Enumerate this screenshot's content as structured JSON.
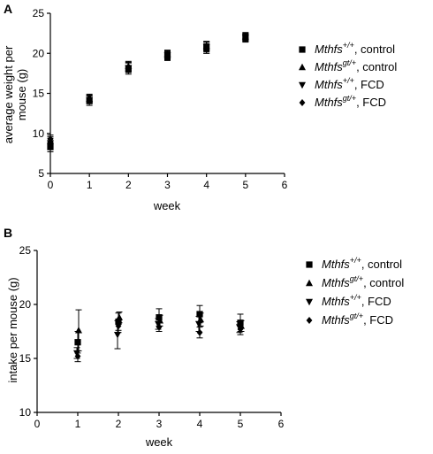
{
  "chart_data": [
    {
      "panel": "A",
      "type": "scatter",
      "xlabel": "week",
      "ylabel": "average weight per mouse (g)",
      "xlim": [
        0,
        6
      ],
      "ylim": [
        5,
        25
      ],
      "xticks": [
        0,
        1,
        2,
        3,
        4,
        5,
        6
      ],
      "yticks": [
        5,
        10,
        15,
        20,
        25
      ],
      "grid": false,
      "legend_position": "right",
      "series": [
        {
          "name": "Mthfs+/+, control",
          "marker": "square",
          "x": [
            0,
            1,
            2,
            3,
            4,
            5
          ],
          "y": [
            8.3,
            14.1,
            18.1,
            19.7,
            20.7,
            22.0
          ],
          "err": [
            0.6,
            0.6,
            0.7,
            0.5,
            0.7,
            0.5
          ]
        },
        {
          "name": "Mthfsgt/+, control",
          "marker": "triangle-up",
          "x": [
            0,
            1,
            2,
            3,
            4,
            5
          ],
          "y": [
            9.0,
            14.3,
            18.4,
            19.9,
            20.9,
            22.1
          ],
          "err": [
            0.6,
            0.5,
            0.6,
            0.5,
            0.6,
            0.5
          ]
        },
        {
          "name": "Mthfs+/+, FCD",
          "marker": "triangle-down",
          "x": [
            0,
            1,
            2,
            3,
            4,
            5
          ],
          "y": [
            8.8,
            14.2,
            18.2,
            19.8,
            20.8,
            22.0
          ],
          "err": [
            0.6,
            0.5,
            0.6,
            0.5,
            0.6,
            0.5
          ]
        },
        {
          "name": "Mthfsgt/+, FCD",
          "marker": "diamond",
          "x": [
            0,
            1,
            2,
            3,
            4,
            5
          ],
          "y": [
            9.3,
            14.4,
            18.3,
            19.6,
            20.6,
            21.9
          ],
          "err": [
            0.5,
            0.5,
            0.6,
            0.5,
            0.6,
            0.5
          ]
        }
      ]
    },
    {
      "panel": "B",
      "type": "scatter",
      "xlabel": "week",
      "ylabel": "intake per mouse (g)",
      "xlim": [
        0,
        6
      ],
      "ylim": [
        10,
        25
      ],
      "xticks": [
        0,
        1,
        2,
        3,
        4,
        5,
        6
      ],
      "yticks": [
        10,
        15,
        20,
        25
      ],
      "grid": false,
      "legend_position": "right",
      "series": [
        {
          "name": "Mthfs+/+, control",
          "marker": "square",
          "x": [
            1,
            2,
            3,
            4,
            5
          ],
          "y": [
            16.5,
            18.4,
            18.8,
            19.1,
            18.3
          ],
          "err": [
            1.0,
            0.8,
            0.8,
            0.8,
            0.8
          ]
        },
        {
          "name": "Mthfsgt/+, control",
          "marker": "triangle-up",
          "x": [
            1,
            2,
            3,
            4,
            5
          ],
          "y": [
            17.6,
            18.8,
            18.5,
            18.6,
            18.0
          ],
          "err": [
            1.9,
            0.5,
            0.5,
            0.6,
            0.5
          ]
        },
        {
          "name": "Mthfs+/+, FCD",
          "marker": "triangle-down",
          "x": [
            1,
            2,
            3,
            4,
            5
          ],
          "y": [
            15.5,
            17.2,
            18.2,
            18.2,
            17.9
          ],
          "err": [
            0.5,
            1.3,
            0.5,
            0.7,
            0.5
          ]
        },
        {
          "name": "Mthfsgt/+, FCD",
          "marker": "diamond",
          "x": [
            1,
            2,
            3,
            4,
            5
          ],
          "y": [
            15.2,
            18.0,
            17.9,
            17.4,
            17.7
          ],
          "err": [
            0.5,
            0.6,
            0.4,
            0.5,
            0.5
          ]
        }
      ]
    }
  ],
  "legend_entries": [
    {
      "gene": "Mthfs",
      "genotype": "+/+",
      "diet": ", control"
    },
    {
      "gene": "Mthfs",
      "genotype": "gt/+",
      "diet": ", control"
    },
    {
      "gene": "Mthfs",
      "genotype": "+/+",
      "diet": ", FCD"
    },
    {
      "gene": "Mthfs",
      "genotype": "gt/+",
      "diet": ", FCD"
    }
  ],
  "panels": {
    "A": {
      "letter": "A",
      "ylabel_line1": "average weight per",
      "ylabel_line2": "mouse (g)",
      "xlabel": "week"
    },
    "B": {
      "letter": "B",
      "ylabel_line1": "intake per mouse (g)",
      "xlabel": "week"
    }
  }
}
